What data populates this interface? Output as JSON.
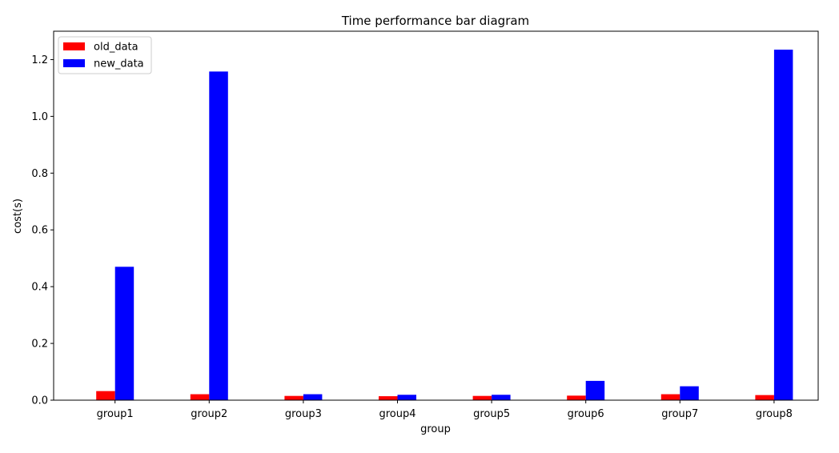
{
  "chart_data": {
    "type": "bar",
    "title": "Time performance bar diagram",
    "xlabel": "group",
    "ylabel": "cost(s)",
    "categories": [
      "group1",
      "group2",
      "group3",
      "group4",
      "group5",
      "group6",
      "group7",
      "group8"
    ],
    "series": [
      {
        "name": "old_data",
        "color": "#ff0000",
        "values": [
          0.032,
          0.021,
          0.015,
          0.014,
          0.015,
          0.016,
          0.021,
          0.018
        ]
      },
      {
        "name": "new_data",
        "color": "#0000ff",
        "values": [
          0.47,
          1.158,
          0.021,
          0.019,
          0.019,
          0.068,
          0.049,
          1.235
        ]
      }
    ],
    "ylim": [
      0,
      1.3
    ],
    "yticks": [
      "0.0",
      "0.2",
      "0.4",
      "0.6",
      "0.8",
      "1.0",
      "1.2"
    ],
    "legend": {
      "position": "top-left"
    },
    "grid": false
  }
}
